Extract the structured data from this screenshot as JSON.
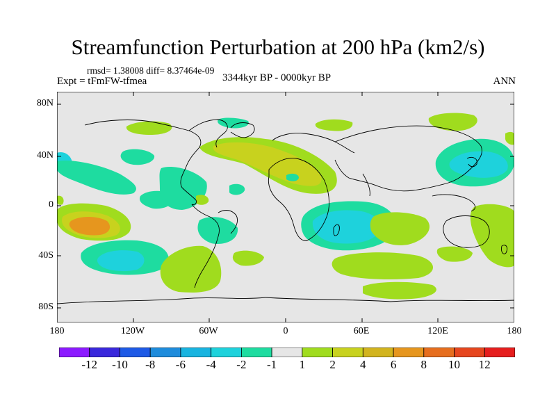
{
  "title": "Streamfunction Perturbation at 200 hPa (km2/s)",
  "stats": "rmsd= 1.38008 diff= 8.37464e-09",
  "experiment": "Expt = tFmFW-tfmea",
  "period": "3344kyr BP - 0000kyr BP",
  "season": "ANN",
  "lat_labels": [
    "80N",
    "40N",
    "0",
    "40S",
    "80S"
  ],
  "lon_labels": [
    "180",
    "120W",
    "60W",
    "0",
    "60E",
    "120E",
    "180"
  ],
  "colorbar": {
    "labels": [
      "-12",
      "-10",
      "-8",
      "-6",
      "-4",
      "-2",
      "-1",
      "1",
      "2",
      "4",
      "6",
      "8",
      "10",
      "12"
    ],
    "colors": [
      "#8c1aff",
      "#3a28dc",
      "#1e5ae6",
      "#1e8cdc",
      "#19b4e0",
      "#1ed2dc",
      "#1edca0",
      "#e6e6e6",
      "#a0dc1e",
      "#c8d21e",
      "#d2b41e",
      "#e6961e",
      "#e66e1e",
      "#e6461e",
      "#e61e1e"
    ]
  },
  "colors": {
    "neutral": "#e6e6e6",
    "frame": "#000000"
  }
}
